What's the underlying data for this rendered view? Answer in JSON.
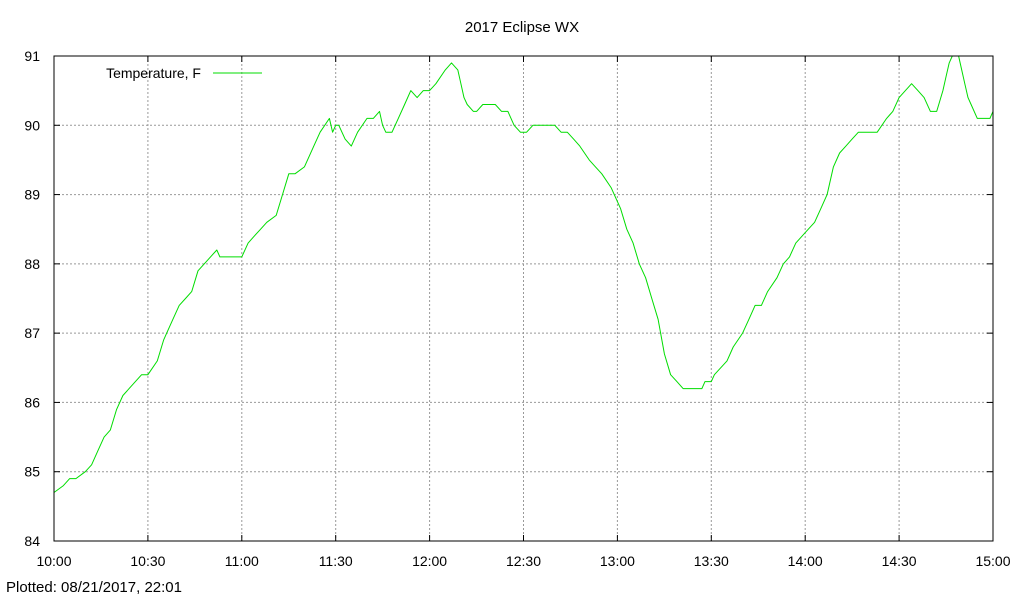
{
  "footer": {
    "plotted_label": "Plotted:",
    "plotted_value": "08/21/2017, 22:01"
  },
  "chart_data": {
    "type": "line",
    "title": "2017 Eclipse WX",
    "xlabel": "",
    "ylabel": "",
    "x_ticks": [
      "10:00",
      "10:30",
      "11:00",
      "11:30",
      "12:00",
      "12:30",
      "13:00",
      "13:30",
      "14:00",
      "14:30",
      "15:00"
    ],
    "x_range": [
      "10:00",
      "15:00"
    ],
    "y_ticks": [
      84,
      85,
      86,
      87,
      88,
      89,
      90,
      91
    ],
    "ylim": [
      84,
      91
    ],
    "grid": true,
    "legend_position": "top-left",
    "series": [
      {
        "name": "Temperature, F",
        "color": "#00dd00",
        "x": [
          "10:00",
          "10:03",
          "10:05",
          "10:07",
          "10:10",
          "10:12",
          "10:14",
          "10:16",
          "10:18",
          "10:20",
          "10:22",
          "10:24",
          "10:26",
          "10:28",
          "10:30",
          "10:33",
          "10:35",
          "10:36",
          "10:37",
          "10:38",
          "10:40",
          "10:42",
          "10:44",
          "10:46",
          "10:48",
          "10:50",
          "10:52",
          "10:53",
          "10:55",
          "10:57",
          "11:00",
          "11:02",
          "11:04",
          "11:06",
          "11:08",
          "11:11",
          "11:13",
          "11:15",
          "11:17",
          "11:20",
          "11:23",
          "11:25",
          "11:28",
          "11:29",
          "11:30",
          "11:31",
          "11:33",
          "11:35",
          "11:37",
          "11:40",
          "11:42",
          "11:44",
          "11:45",
          "11:46",
          "11:48",
          "11:50",
          "11:52",
          "11:54",
          "11:56",
          "11:58",
          "12:00",
          "12:02",
          "12:05",
          "12:07",
          "12:09",
          "12:10",
          "12:11",
          "12:12",
          "12:14",
          "12:15",
          "12:17",
          "12:19",
          "12:21",
          "12:23",
          "12:25",
          "12:27",
          "12:29",
          "12:31",
          "12:33",
          "12:35",
          "12:38",
          "12:40",
          "12:42",
          "12:44",
          "12:46",
          "12:48",
          "12:51",
          "12:53",
          "12:55",
          "12:58",
          "13:01",
          "13:03",
          "13:05",
          "13:07",
          "13:09",
          "13:11",
          "13:13",
          "13:15",
          "13:17",
          "13:19",
          "13:21",
          "13:22",
          "13:23",
          "13:25",
          "13:27",
          "13:28",
          "13:30",
          "13:31",
          "13:33",
          "13:35",
          "13:37",
          "13:40",
          "13:42",
          "13:44",
          "13:46",
          "13:48",
          "13:51",
          "13:53",
          "13:55",
          "13:57",
          "13:59",
          "14:01",
          "14:03",
          "14:05",
          "14:07",
          "14:09",
          "14:11",
          "14:13",
          "14:15",
          "14:17",
          "14:19",
          "14:21",
          "14:23",
          "14:26",
          "14:28",
          "14:30",
          "14:32",
          "14:34",
          "14:36",
          "14:38",
          "14:40",
          "14:42",
          "14:44",
          "14:45",
          "14:46",
          "14:47",
          "14:48",
          "14:49",
          "14:50",
          "14:51",
          "14:52",
          "14:53",
          "14:55",
          "14:57",
          "14:59",
          "15:00"
        ],
        "y": [
          84.7,
          84.8,
          84.9,
          84.9,
          85.0,
          85.1,
          85.3,
          85.5,
          85.6,
          85.9,
          86.1,
          86.2,
          86.3,
          86.4,
          86.4,
          86.6,
          86.9,
          87.0,
          87.1,
          87.2,
          87.4,
          87.5,
          87.6,
          87.9,
          88.0,
          88.1,
          88.2,
          88.1,
          88.1,
          88.1,
          88.1,
          88.3,
          88.4,
          88.5,
          88.6,
          88.7,
          89.0,
          89.3,
          89.3,
          89.4,
          89.7,
          89.9,
          90.1,
          89.9,
          90.0,
          90.0,
          89.8,
          89.7,
          89.9,
          90.1,
          90.1,
          90.2,
          90.0,
          89.9,
          89.9,
          90.1,
          90.3,
          90.5,
          90.4,
          90.5,
          90.5,
          90.6,
          90.8,
          90.9,
          90.8,
          90.6,
          90.4,
          90.3,
          90.2,
          90.2,
          90.3,
          90.3,
          90.3,
          90.2,
          90.2,
          90.0,
          89.9,
          89.9,
          90.0,
          90.0,
          90.0,
          90.0,
          89.9,
          89.9,
          89.8,
          89.7,
          89.5,
          89.4,
          89.3,
          89.1,
          88.8,
          88.5,
          88.3,
          88.0,
          87.8,
          87.5,
          87.2,
          86.7,
          86.4,
          86.3,
          86.2,
          86.2,
          86.2,
          86.2,
          86.2,
          86.3,
          86.3,
          86.4,
          86.5,
          86.6,
          86.8,
          87.0,
          87.2,
          87.4,
          87.4,
          87.6,
          87.8,
          88.0,
          88.1,
          88.3,
          88.4,
          88.5,
          88.6,
          88.8,
          89.0,
          89.4,
          89.6,
          89.7,
          89.8,
          89.9,
          89.9,
          89.9,
          89.9,
          90.1,
          90.2,
          90.4,
          90.5,
          90.6,
          90.5,
          90.4,
          90.2,
          90.2,
          90.5,
          90.7,
          90.9,
          91.0,
          91.0,
          91.0,
          90.8,
          90.6,
          90.4,
          90.3,
          90.1,
          90.1,
          90.1,
          90.2
        ]
      }
    ]
  }
}
